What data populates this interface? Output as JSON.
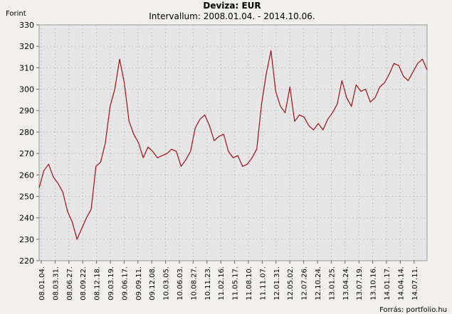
{
  "chart_data": {
    "type": "line",
    "title": "Deviza: EUR",
    "subtitle": "Intervallum: 2008.01.04. - 2014.10.06.",
    "ylabel": "Forint",
    "source": "Forrás: portfolio.hu",
    "ylim": [
      220,
      330
    ],
    "yticks": [
      220,
      230,
      240,
      250,
      260,
      270,
      280,
      290,
      300,
      310,
      320,
      330
    ],
    "grid": true,
    "xtick_labels": [
      "08.01.04.",
      "08.03.31.",
      "08.06.27.",
      "08.09.22.",
      "08.12.18.",
      "09.03.19.",
      "09.06.17.",
      "09.09.11.",
      "09.12.08.",
      "10.03.05.",
      "10.06.03.",
      "10.08.27.",
      "10.11.23.",
      "11.02.16.",
      "11.05.17.",
      "11.08.10.",
      "11.11.07.",
      "12.01.31.",
      "12.05.02.",
      "12.07.26.",
      "12.10.24.",
      "13.01.25.",
      "13.04.24.",
      "13.07.19.",
      "13.10.16.",
      "14.01.17.",
      "14.04.14.",
      "14.07.11."
    ],
    "series": [
      {
        "name": "",
        "color": "#a01010",
        "values": [
          254,
          262,
          265,
          259,
          256,
          252,
          243,
          238,
          230,
          235,
          240,
          244,
          264,
          266,
          275,
          292,
          300,
          314,
          303,
          285,
          279,
          275,
          268,
          273,
          271,
          268,
          269,
          270,
          272,
          271,
          264,
          267,
          271,
          282,
          286,
          288,
          283,
          276,
          278,
          279,
          271,
          268,
          269,
          264,
          265,
          268,
          272,
          293,
          307,
          318,
          299,
          292,
          289,
          301,
          285,
          288,
          287,
          283,
          281,
          284,
          281,
          286,
          289,
          293,
          304,
          296,
          292,
          302,
          299,
          300,
          294,
          296,
          301,
          303,
          307,
          312,
          311,
          306,
          304,
          308,
          312,
          314,
          309
        ]
      }
    ]
  }
}
